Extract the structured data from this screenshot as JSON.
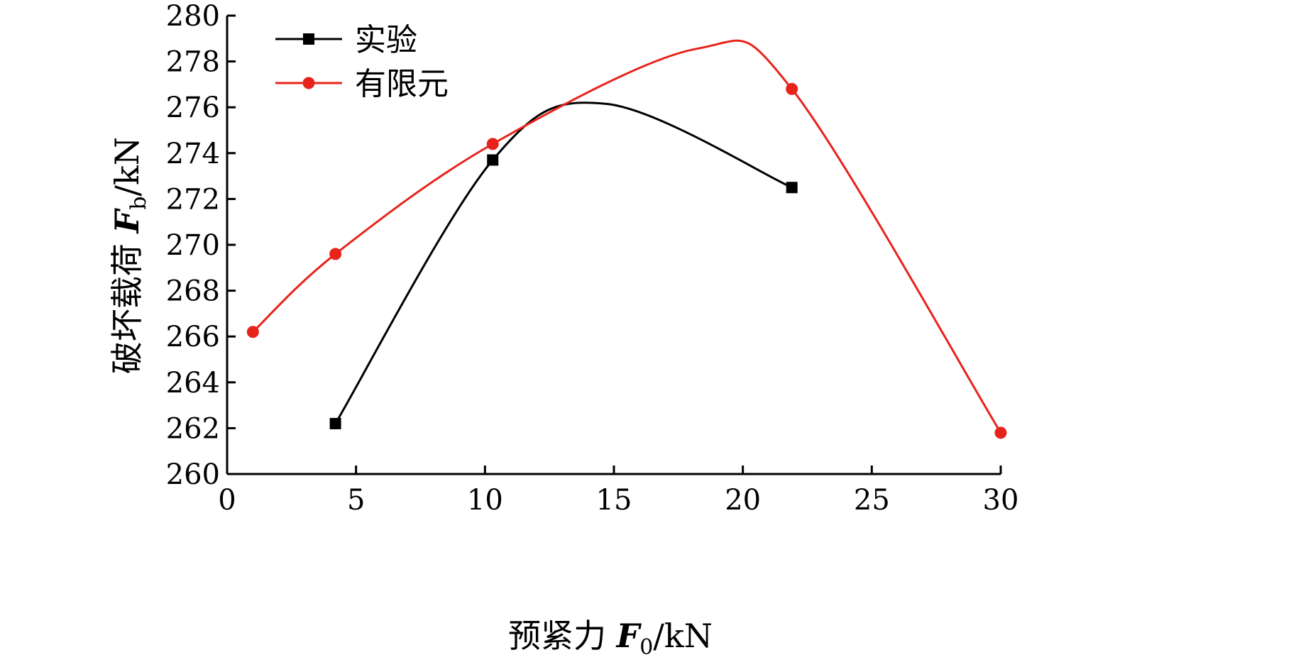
{
  "chart_data": {
    "type": "line",
    "xlabel": "预紧力 F0/kN",
    "ylabel": "破坏载荷 Fb/kN",
    "xlabel_parts": {
      "prefix": "预紧力 ",
      "var": "F",
      "sub": "0",
      "unit": "/kN"
    },
    "ylabel_parts": {
      "prefix": "破坏载荷 ",
      "var": "F",
      "sub": "b",
      "unit": "/kN"
    },
    "xlim": [
      0,
      30
    ],
    "ylim": [
      260,
      280
    ],
    "xticks": [
      0,
      5,
      10,
      15,
      20,
      25,
      30
    ],
    "yticks": [
      260,
      262,
      264,
      266,
      268,
      270,
      272,
      274,
      276,
      278,
      280
    ],
    "grid": false,
    "legend_position": "top-left",
    "series": [
      {
        "name": "实验",
        "color": "#000000",
        "marker": "square",
        "smooth": true,
        "x": [
          4.2,
          10.3,
          21.9
        ],
        "y": [
          262.2,
          273.7,
          272.5
        ],
        "curve_peak": {
          "x": 14.7,
          "y": 276.15
        }
      },
      {
        "name": "有限元",
        "color": "#e8231b",
        "marker": "circle",
        "smooth": true,
        "x": [
          1.0,
          4.2,
          10.3,
          21.9,
          30.0
        ],
        "y": [
          266.2,
          269.6,
          274.4,
          276.8,
          261.8
        ],
        "curve_peak": {
          "x": 18.2,
          "y": 278.55
        }
      }
    ]
  }
}
